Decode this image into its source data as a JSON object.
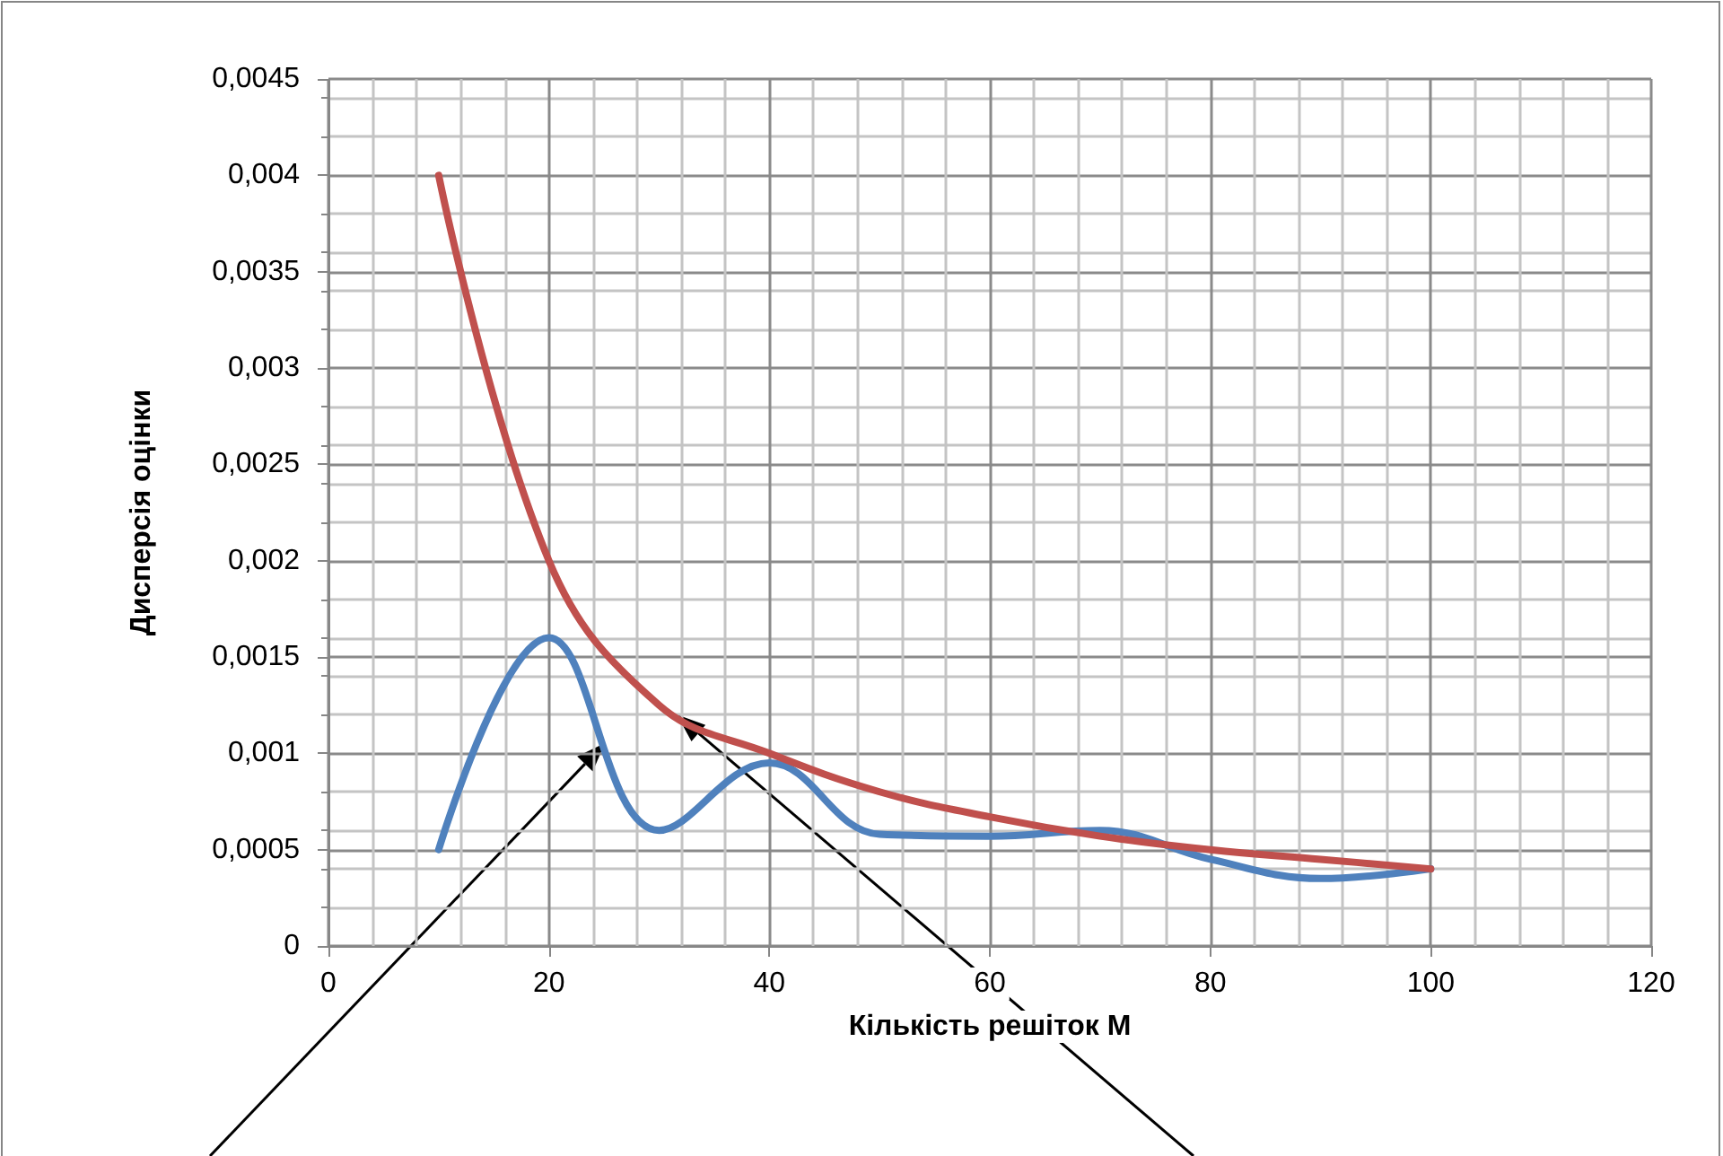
{
  "chart_data": {
    "type": "line",
    "xlabel": "Кількість решіток M",
    "ylabel": "Дисперсія оцінки",
    "x": [
      10,
      20,
      30,
      40,
      50,
      60,
      70,
      80,
      90,
      100
    ],
    "series": [
      {
        "color": "#4f81bd",
        "values": [
          0.0005,
          0.0016,
          0.0006,
          0.00095,
          0.00058,
          0.00057,
          0.0006,
          0.00045,
          0.00035,
          0.0004
        ]
      },
      {
        "color": "#c0504d",
        "values": [
          0.004,
          0.002,
          0.00125,
          0.001,
          0.0008,
          0.00067,
          0.00057,
          0.0005,
          0.00045,
          0.0004
        ]
      }
    ],
    "xlim": [
      0,
      120
    ],
    "xticks": [
      0,
      20,
      40,
      60,
      80,
      100,
      120
    ],
    "ylim": [
      0,
      0.0045
    ],
    "yticks": [
      {
        "value": 0,
        "label": "0"
      },
      {
        "value": 0.0005,
        "label": "0,0005"
      },
      {
        "value": 0.001,
        "label": "0,001"
      },
      {
        "value": 0.0015,
        "label": "0,0015"
      },
      {
        "value": 0.002,
        "label": "0,002"
      },
      {
        "value": 0.0025,
        "label": "0,0025"
      },
      {
        "value": 0.003,
        "label": "0,003"
      },
      {
        "value": 0.0035,
        "label": "0,0035"
      },
      {
        "value": 0.004,
        "label": "0,004"
      },
      {
        "value": 0.0045,
        "label": "0,0045"
      }
    ],
    "grid": true,
    "marker": "none",
    "line_style": "solid"
  }
}
